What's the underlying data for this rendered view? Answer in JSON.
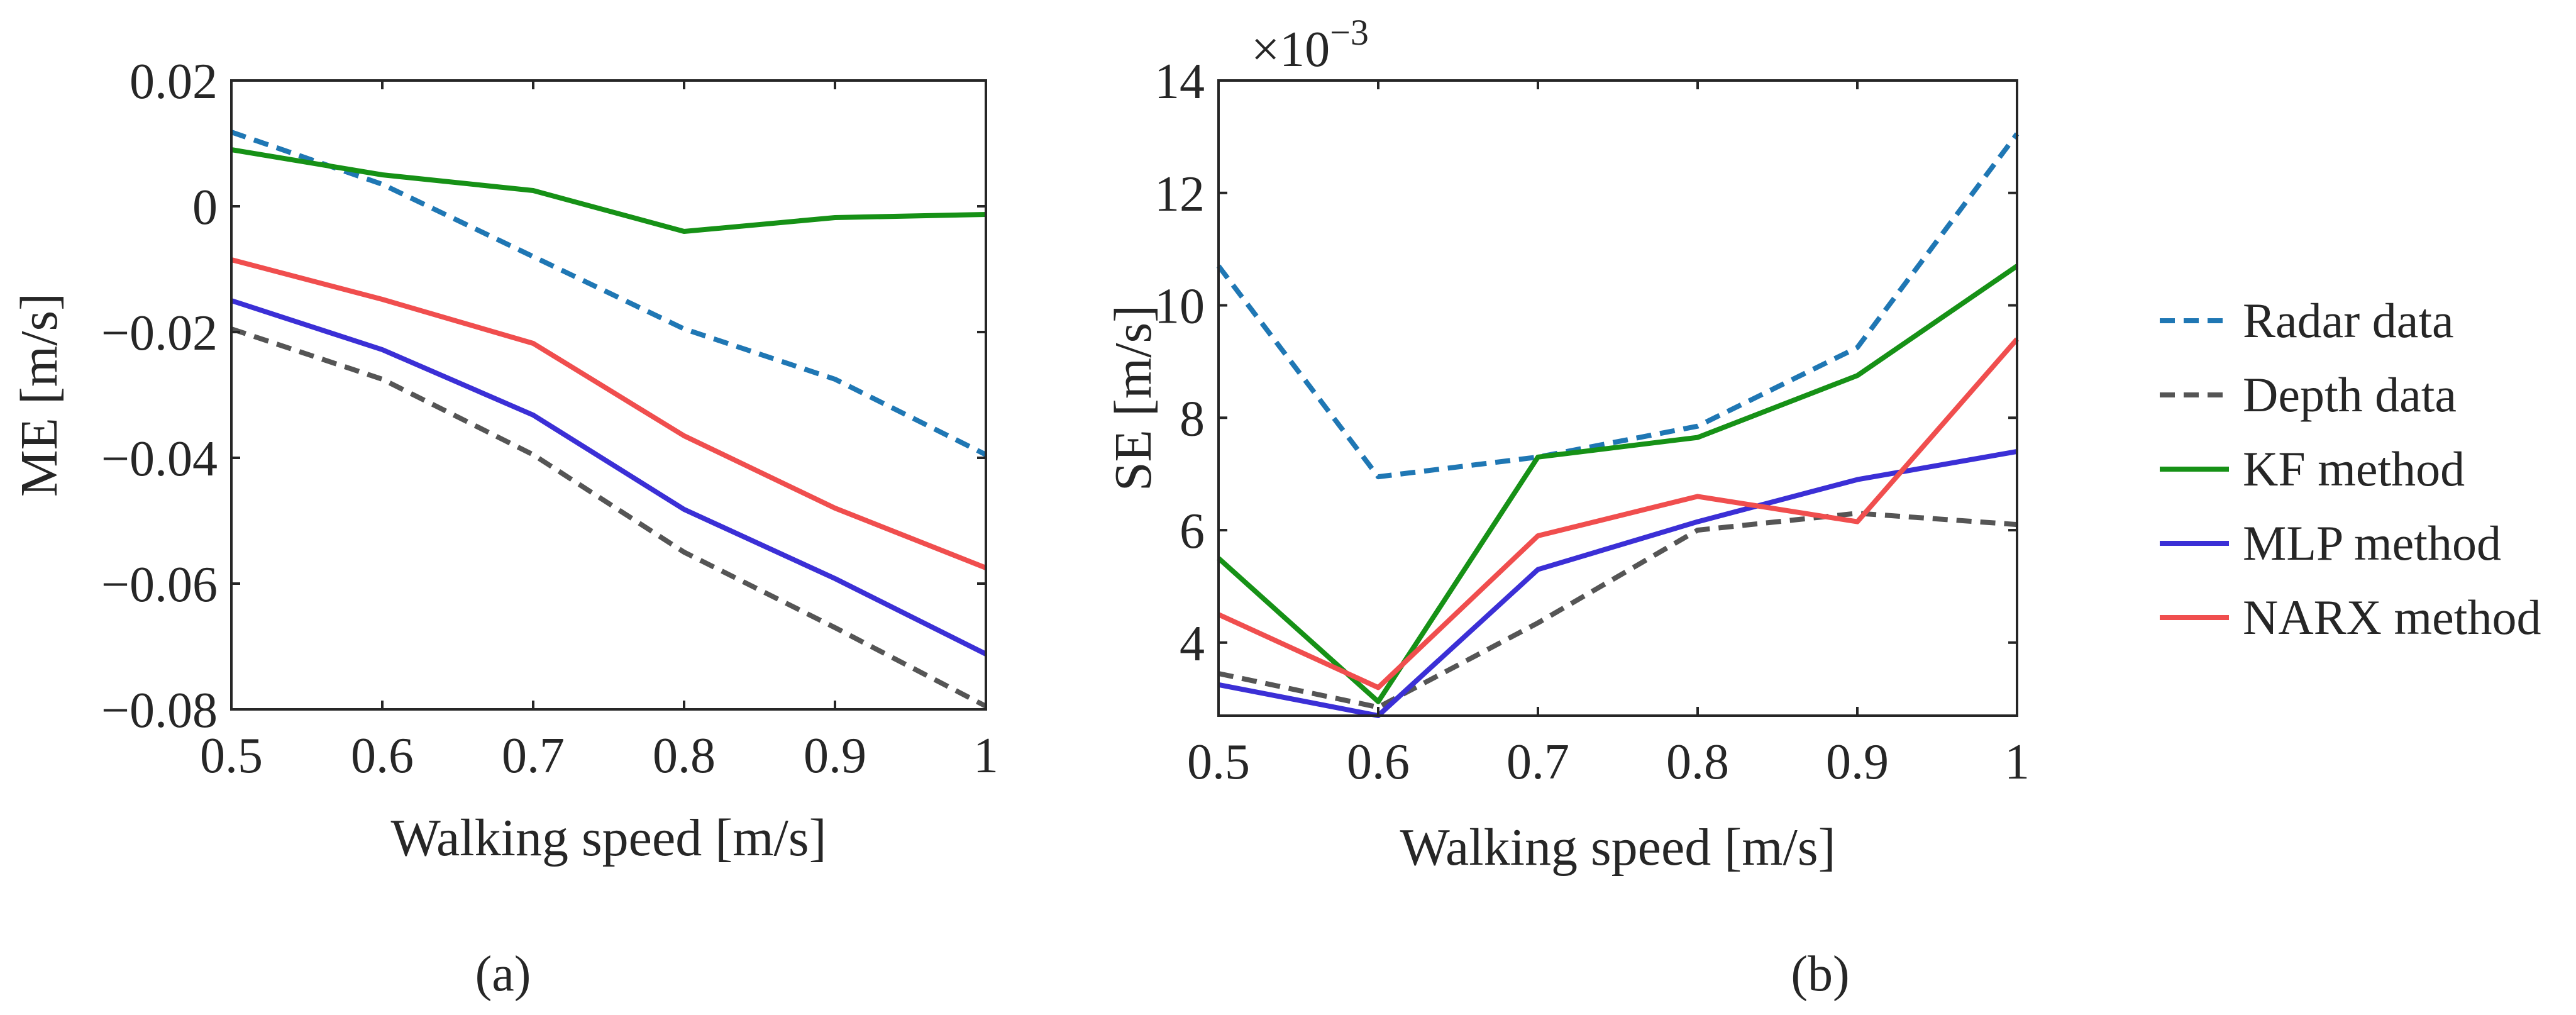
{
  "chart_data": [
    {
      "type": "line",
      "panel": "a",
      "panel_label": "(a)",
      "xlabel": "Walking speed [m/s]",
      "ylabel": "ME [m/s]",
      "x": [
        0.5,
        0.6,
        0.7,
        0.8,
        0.9,
        1.0
      ],
      "xlim": [
        0.5,
        1.0
      ],
      "ylim": [
        -0.08,
        0.02
      ],
      "xticks": [
        0.5,
        0.6,
        0.7,
        0.8,
        0.9,
        1.0
      ],
      "xtick_labels": [
        "0.5",
        "0.6",
        "0.7",
        "0.8",
        "0.9",
        "1"
      ],
      "yticks": [
        -0.08,
        -0.06,
        -0.04,
        -0.02,
        0,
        0.02
      ],
      "ytick_labels": [
        "−0.08",
        "−0.06",
        "−0.04",
        "−0.02",
        "0",
        "0.02"
      ],
      "grid": false,
      "series": [
        {
          "name": "Radar data",
          "values": [
            0.0118,
            0.0035,
            -0.008,
            -0.0195,
            -0.0275,
            -0.0395
          ]
        },
        {
          "name": "Depth data",
          "values": [
            -0.0195,
            -0.0275,
            -0.0395,
            -0.055,
            -0.067,
            -0.0795
          ]
        },
        {
          "name": "KF method",
          "values": [
            0.009,
            0.005,
            0.0025,
            -0.004,
            -0.0018,
            -0.0013
          ]
        },
        {
          "name": "MLP method",
          "values": [
            -0.015,
            -0.0228,
            -0.0332,
            -0.0482,
            -0.0592,
            -0.0712
          ]
        },
        {
          "name": "NARX method",
          "values": [
            -0.0085,
            -0.0148,
            -0.0218,
            -0.0365,
            -0.048,
            -0.0575
          ]
        }
      ]
    },
    {
      "type": "line",
      "panel": "b",
      "panel_label": "(b)",
      "xlabel": "Walking speed [m/s]",
      "ylabel": "SE [m/s]",
      "exponent_base": "×10",
      "exponent_power": "−3",
      "x": [
        0.5,
        0.6,
        0.7,
        0.8,
        0.9,
        1.0
      ],
      "xlim": [
        0.5,
        1.0
      ],
      "ylim": [
        2.7,
        14
      ],
      "xticks": [
        0.5,
        0.6,
        0.7,
        0.8,
        0.9,
        1.0
      ],
      "xtick_labels": [
        "0.5",
        "0.6",
        "0.7",
        "0.8",
        "0.9",
        "1"
      ],
      "yticks": [
        4,
        6,
        8,
        10,
        12,
        14
      ],
      "ytick_labels": [
        "4",
        "6",
        "8",
        "10",
        "12",
        "14"
      ],
      "grid": false,
      "series": [
        {
          "name": "Radar data",
          "values": [
            10.7,
            6.95,
            7.3,
            7.85,
            9.25,
            13.05
          ]
        },
        {
          "name": "Depth data",
          "values": [
            3.45,
            2.85,
            4.35,
            6.0,
            6.3,
            6.1
          ]
        },
        {
          "name": "KF method",
          "values": [
            5.5,
            2.95,
            7.3,
            7.65,
            8.75,
            10.7
          ]
        },
        {
          "name": "MLP method",
          "values": [
            3.25,
            2.7,
            5.3,
            6.15,
            6.9,
            7.4
          ]
        },
        {
          "name": "NARX method",
          "values": [
            4.5,
            3.2,
            5.9,
            6.6,
            6.15,
            9.4
          ]
        }
      ]
    }
  ],
  "legend": {
    "placement": "right",
    "entries": [
      {
        "name": "Radar data",
        "color": "#1f77b4",
        "dashed": true
      },
      {
        "name": "Depth data",
        "color": "#555555",
        "dashed": true
      },
      {
        "name": "KF method",
        "color": "#169116",
        "dashed": false
      },
      {
        "name": "MLP method",
        "color": "#3b2fd6",
        "dashed": false
      },
      {
        "name": "NARX method",
        "color": "#f04e4e",
        "dashed": false
      }
    ]
  }
}
